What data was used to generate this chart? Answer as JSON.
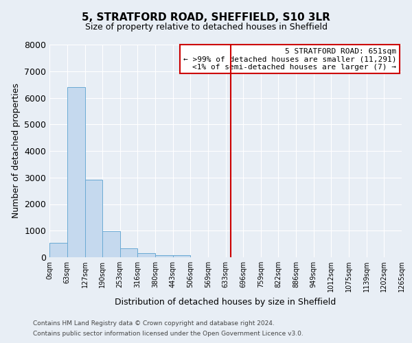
{
  "title": "5, STRATFORD ROAD, SHEFFIELD, S10 3LR",
  "subtitle": "Size of property relative to detached houses in Sheffield",
  "xlabel": "Distribution of detached houses by size in Sheffield",
  "ylabel": "Number of detached properties",
  "bar_color": "#c5d9ee",
  "bar_edge_color": "#6aaad4",
  "background_color": "#e8eef5",
  "bin_edges": [
    0,
    63,
    127,
    190,
    253,
    316,
    380,
    443,
    506,
    569,
    633,
    696,
    759,
    822,
    886,
    949,
    1012,
    1075,
    1139,
    1202,
    1265
  ],
  "bar_heights": [
    550,
    6400,
    2920,
    970,
    340,
    155,
    80,
    65,
    0,
    0,
    0,
    0,
    0,
    0,
    0,
    0,
    0,
    0,
    0,
    0
  ],
  "ylim": [
    0,
    8000
  ],
  "yticks": [
    0,
    1000,
    2000,
    3000,
    4000,
    5000,
    6000,
    7000,
    8000
  ],
  "vline_x": 651,
  "vline_color": "#cc0000",
  "annotation_title": "5 STRATFORD ROAD: 651sqm",
  "annotation_line1": "← >99% of detached houses are smaller (11,291)",
  "annotation_line2": "<1% of semi-detached houses are larger (7) →",
  "annotation_box_color": "#cc0000",
  "footer_line1": "Contains HM Land Registry data © Crown copyright and database right 2024.",
  "footer_line2": "Contains public sector information licensed under the Open Government Licence v3.0.",
  "tick_labels": [
    "0sqm",
    "63sqm",
    "127sqm",
    "190sqm",
    "253sqm",
    "316sqm",
    "380sqm",
    "443sqm",
    "506sqm",
    "569sqm",
    "633sqm",
    "696sqm",
    "759sqm",
    "822sqm",
    "886sqm",
    "949sqm",
    "1012sqm",
    "1075sqm",
    "1139sqm",
    "1202sqm",
    "1265sqm"
  ],
  "grid_color": "#ffffff",
  "annotation_bg": "#ffffff",
  "title_fontsize": 11,
  "subtitle_fontsize": 9,
  "ylabel_fontsize": 9,
  "xlabel_fontsize": 9,
  "ytick_fontsize": 9,
  "xtick_fontsize": 7,
  "footer_fontsize": 6.5,
  "footer_color": "#444444"
}
